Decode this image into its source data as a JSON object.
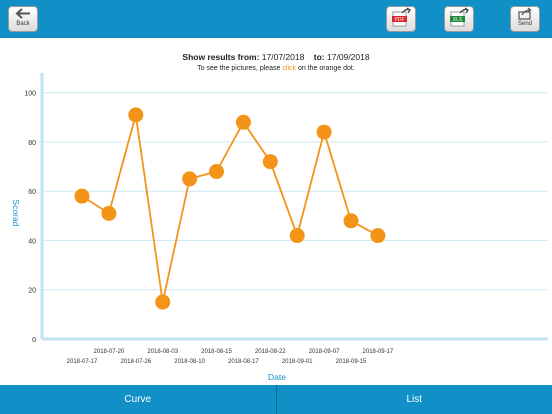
{
  "toolbar": {
    "back_label": "Back",
    "pdf_label": "PDF",
    "xls_label": "XLS",
    "send_label": "Send"
  },
  "header": {
    "from_label": "Show results from:",
    "from_date": "17/07/2018",
    "to_label": "to:",
    "to_date": "17/09/2018",
    "hint_before": "To see the pictures, please",
    "hint_click": "click",
    "hint_after": "on the orange dot."
  },
  "colors": {
    "accent": "#1190c8",
    "series": "#f39418",
    "axis": "#bfe3f2",
    "grid": "#cfe9f5"
  },
  "chart_data": {
    "type": "line",
    "xlabel": "Date",
    "ylabel": "Scorad",
    "ylim": [
      0,
      100
    ],
    "yticks": [
      0,
      20,
      40,
      60,
      80,
      100
    ],
    "grid": true,
    "x": [
      "2018-07-17",
      "2018-07-20",
      "2018-07-26",
      "2018-08-03",
      "2018-08-10",
      "2018-08-15",
      "2018-08-17",
      "2018-08-22",
      "2018-09-01",
      "2018-09-07",
      "2018-09-15",
      "2018-09-17"
    ],
    "series": [
      {
        "values": [
          58,
          51,
          91,
          15,
          65,
          68,
          88,
          72,
          42,
          84,
          48,
          42
        ]
      }
    ]
  },
  "tabs": [
    {
      "label": "Curve"
    },
    {
      "label": "List"
    }
  ]
}
